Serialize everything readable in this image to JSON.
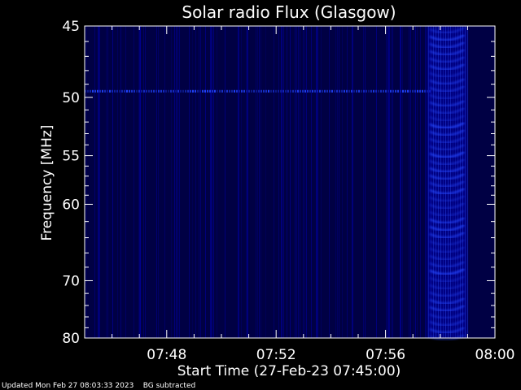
{
  "chart_data": {
    "type": "heatmap",
    "title": "Solar radio Flux (Glasgow)",
    "xlabel": "Start Time (27-Feb-23 07:45:00)",
    "ylabel": "Frequency [MHz]",
    "x_tick_labels": [
      "07:48",
      "07:52",
      "07:56",
      "08:00"
    ],
    "x_tick_minutes": [
      3,
      7,
      11,
      15
    ],
    "xlim_minutes": [
      0,
      15
    ],
    "y_tick_labels": [
      "45",
      "50",
      "55",
      "60",
      "70",
      "80"
    ],
    "y_tick_values": [
      45,
      50,
      55,
      60,
      70,
      80
    ],
    "ylim": [
      45,
      80
    ],
    "y_scale": "reciprocal",
    "grid": false,
    "colormap": [
      "#000000",
      "#000044",
      "#0000aa",
      "#2244ff"
    ],
    "features": [
      {
        "description": "persistent interference line",
        "frequency_mhz": 49.5
      },
      {
        "description": "enhanced emission band",
        "time_start": "07:58",
        "time_end": "08:00"
      }
    ]
  },
  "footer": {
    "updated": "Updated Mon Feb 27 08:03:33 2023",
    "bg_note": "BG subtracted"
  }
}
